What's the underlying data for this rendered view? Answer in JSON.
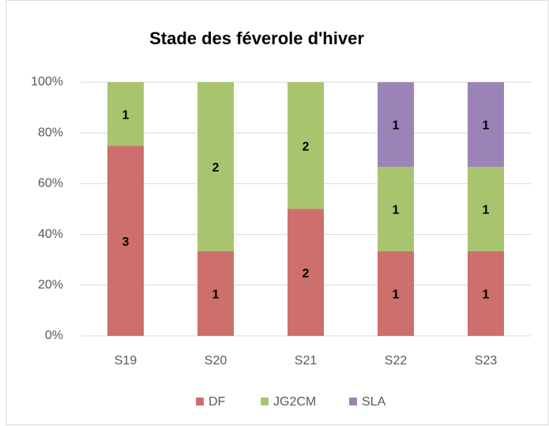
{
  "chart_data": {
    "type": "bar",
    "stacking": "percent",
    "title": "Stade des féverole d'hiver",
    "categories": [
      "S19",
      "S20",
      "S21",
      "S22",
      "S23"
    ],
    "series": [
      {
        "name": "DF",
        "color": "#cd6f6c",
        "values": [
          3,
          1,
          2,
          1,
          1
        ]
      },
      {
        "name": "JG2CM",
        "color": "#a9c46f",
        "values": [
          1,
          2,
          2,
          1,
          1
        ]
      },
      {
        "name": "SLA",
        "color": "#9b83b8",
        "values": [
          0,
          0,
          0,
          1,
          1
        ]
      }
    ],
    "ylim": [
      0,
      100
    ],
    "yticks": [
      {
        "value": 0,
        "label": "0%"
      },
      {
        "value": 20,
        "label": "20%"
      },
      {
        "value": 40,
        "label": "40%"
      },
      {
        "value": 60,
        "label": "60%"
      },
      {
        "value": 80,
        "label": "80%"
      },
      {
        "value": 100,
        "label": "100%"
      }
    ],
    "grid": true,
    "legend": "bottom"
  }
}
